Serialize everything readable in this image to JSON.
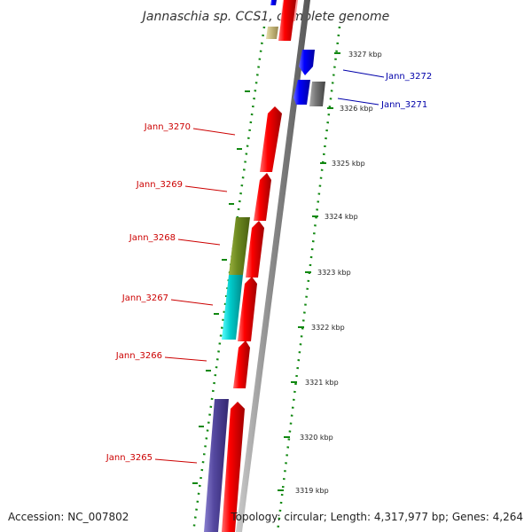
{
  "title": "Jannaschia sp. CCS1, complete genome",
  "footer": {
    "accession": "Accession: NC_007802",
    "summary": "Topology: circular; Length: 4,317,977 bp; Genes: 4,264"
  },
  "colors": {
    "backbone": "#888888",
    "tick": "#118811",
    "forward_gene": "#ff0000",
    "reverse_gene": "#0000ff",
    "label_red": "#cc0000",
    "label_blue": "#0000aa"
  },
  "kbp_labels": [
    "3327 kbp",
    "3326 kbp",
    "3325 kbp",
    "3324 kbp",
    "3323 kbp",
    "3322 kbp",
    "3321 kbp",
    "3320 kbp",
    "3319 kbp"
  ],
  "gene_labels": {
    "left": [
      "Jann_3270",
      "Jann_3269",
      "Jann_3268",
      "Jann_3267",
      "Jann_3266",
      "Jann_3265"
    ],
    "right": [
      "Jann_3272",
      "Jann_3271"
    ]
  }
}
